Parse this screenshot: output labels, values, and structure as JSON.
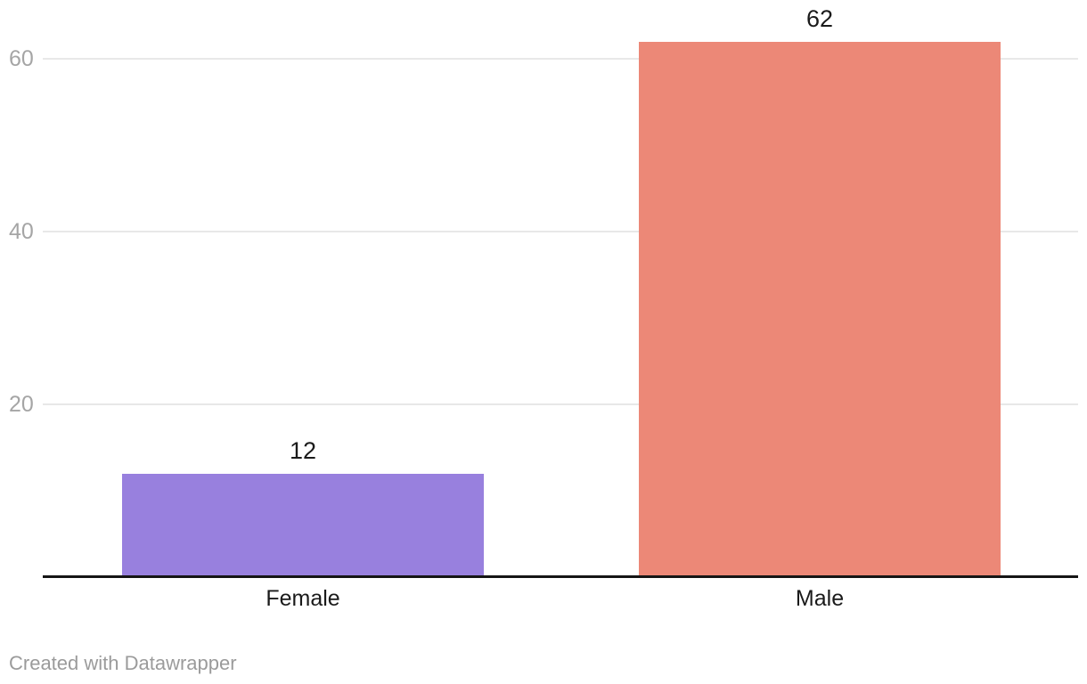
{
  "chart_data": {
    "type": "bar",
    "categories": [
      "Female",
      "Male"
    ],
    "values": [
      12,
      62
    ],
    "value_labels": [
      "12",
      "62"
    ],
    "bar_colors": [
      "#9880de",
      "#ec8877"
    ],
    "title": "",
    "xlabel": "",
    "ylabel": "",
    "ylim": [
      0,
      66
    ],
    "yticks": [
      20,
      40,
      60
    ],
    "grid": "horizontal",
    "legend": "none"
  },
  "footer": {
    "attribution": "Created with Datawrapper"
  },
  "colors": {
    "background": "#ffffff",
    "gridline": "#e8e8e8",
    "tick_label": "#a5a5a5",
    "value_label": "#1a1a1a",
    "category_label": "#1a1a1a",
    "axis_line": "#151515",
    "footer_text": "#9b9b9b"
  }
}
